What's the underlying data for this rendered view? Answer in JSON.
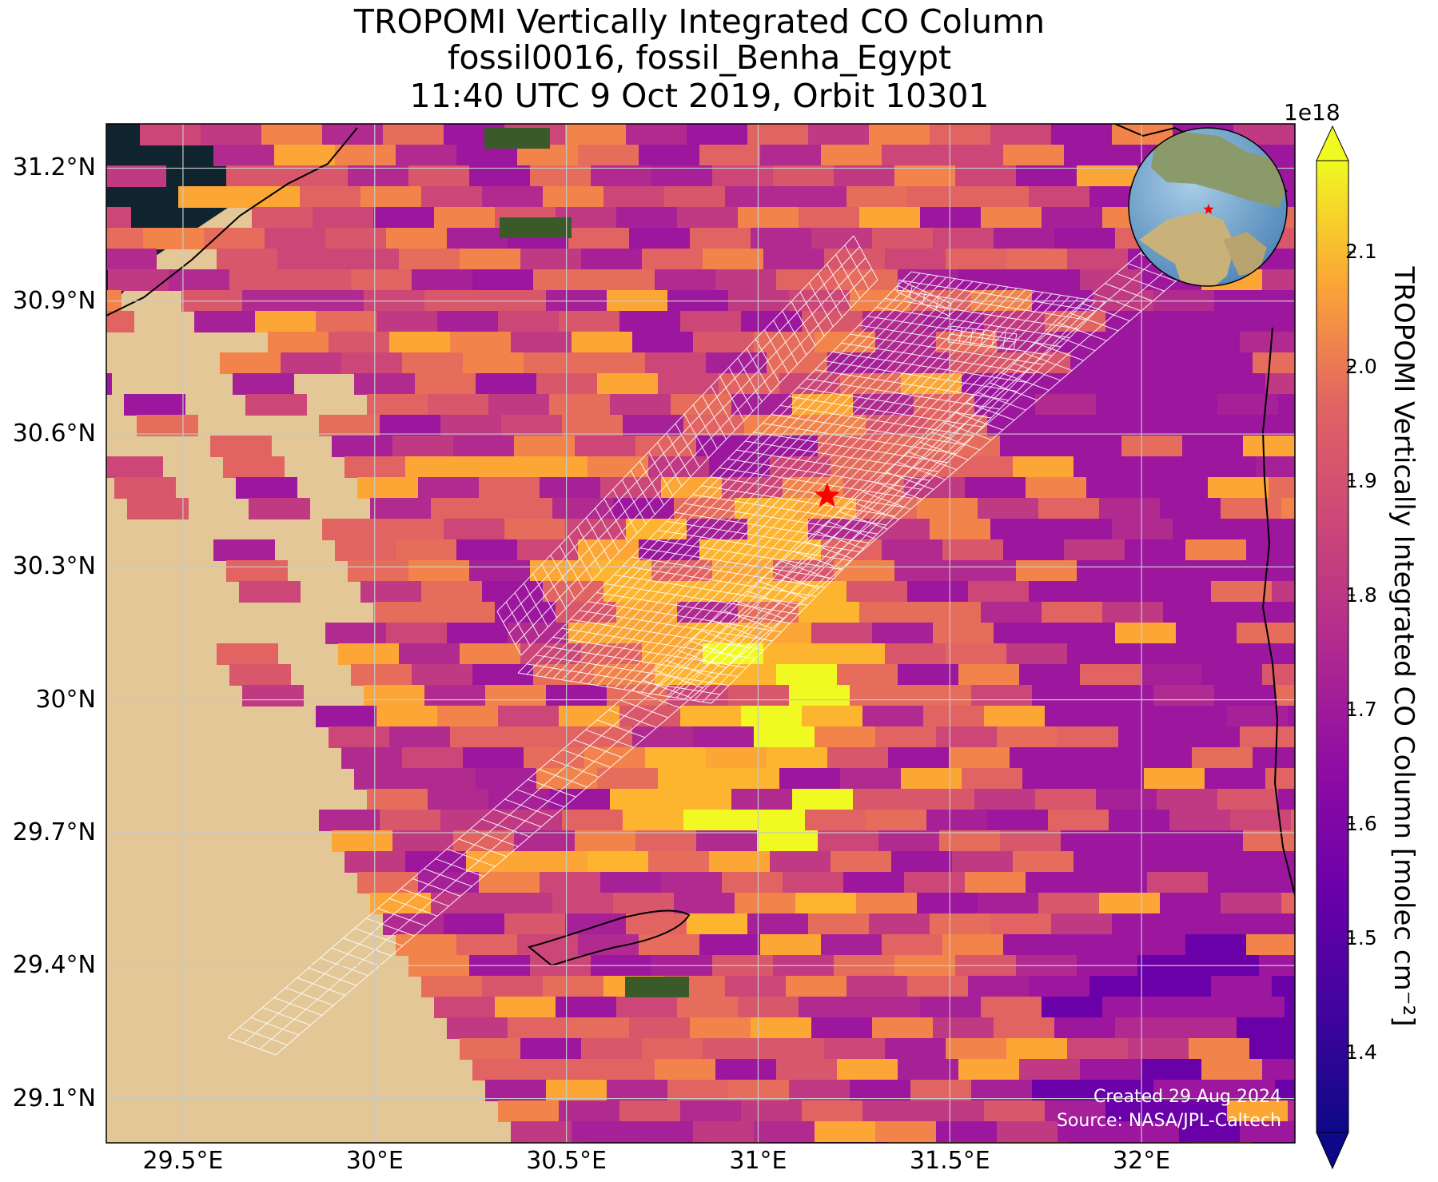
{
  "title": {
    "line1": "TROPOMI Vertically Integrated CO Column",
    "line2": "fossil0016, fossil_Benha_Egypt",
    "line3": "11:40 UTC 9 Oct 2019, Orbit 10301"
  },
  "map": {
    "extent_lon": [
      29.3,
      32.4
    ],
    "extent_lat": [
      29.0,
      31.3
    ],
    "lat_ticks": [
      {
        "value": 31.2,
        "label": "31.2°N"
      },
      {
        "value": 30.9,
        "label": "30.9°N"
      },
      {
        "value": 30.6,
        "label": "30.6°N"
      },
      {
        "value": 30.3,
        "label": "30.3°N"
      },
      {
        "value": 30.0,
        "label": "30°N"
      },
      {
        "value": 29.7,
        "label": "29.7°N"
      },
      {
        "value": 29.4,
        "label": "29.4°N"
      },
      {
        "value": 29.1,
        "label": "29.1°N"
      }
    ],
    "lon_ticks": [
      {
        "value": 29.5,
        "label": "29.5°E"
      },
      {
        "value": 30.0,
        "label": "30°E"
      },
      {
        "value": 30.5,
        "label": "30.5°E"
      },
      {
        "value": 31.0,
        "label": "31°E"
      },
      {
        "value": 31.5,
        "label": "31.5°E"
      },
      {
        "value": 32.0,
        "label": "32°E"
      }
    ],
    "grid": true,
    "site_marker": {
      "lon": 31.18,
      "lat": 30.46,
      "symbol": "star",
      "color": "#ff0000"
    },
    "colors": {
      "sea": "#10242f",
      "desert": "#e3c796",
      "vegetation": "#3b5a2a",
      "target_grid": "#ffffff",
      "coast": "#000000"
    },
    "inset_globe": {
      "position": "top-right",
      "marker": "star"
    }
  },
  "colorbar": {
    "cmap": "plasma",
    "vmin": 1.33,
    "vmax": 2.18,
    "extend": "both",
    "exponent_label": "1e18",
    "label": "TROPOMI Vertically Integrated CO Column [molec cm⁻²]",
    "ticks": [
      {
        "value": 1.4,
        "label": "1.4"
      },
      {
        "value": 1.5,
        "label": "1.5"
      },
      {
        "value": 1.6,
        "label": "1.6"
      },
      {
        "value": 1.7,
        "label": "1.7"
      },
      {
        "value": 1.8,
        "label": "1.8"
      },
      {
        "value": 1.9,
        "label": "1.9"
      },
      {
        "value": 2.0,
        "label": "2.0"
      },
      {
        "value": 2.1,
        "label": "2.1"
      }
    ]
  },
  "footer": {
    "created": "Created 29 Aug 2024",
    "source": "Source: NASA/JPL-Caltech"
  }
}
